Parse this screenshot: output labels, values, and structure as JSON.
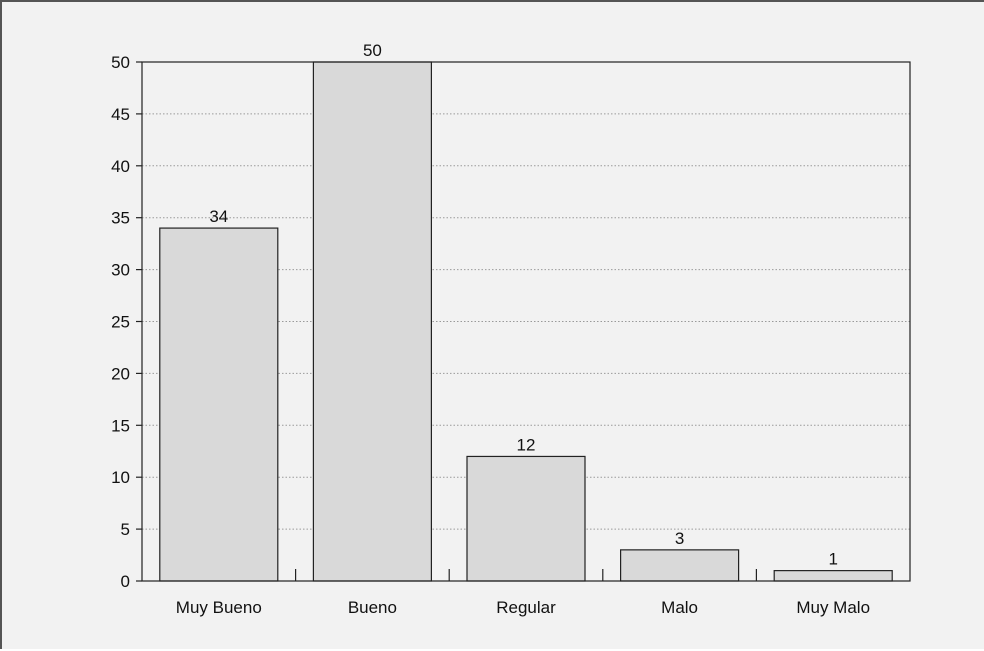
{
  "chart_data": {
    "type": "bar",
    "title": "",
    "xlabel": "",
    "ylabel": "",
    "categories": [
      "Muy Bueno",
      "Bueno",
      "Regular",
      "Malo",
      "Muy Malo"
    ],
    "values": [
      34,
      50,
      12,
      3,
      1
    ],
    "data_labels": [
      "34",
      "50",
      "12",
      "3",
      "1"
    ],
    "ylim": [
      0,
      50
    ],
    "yticks": [
      0,
      5,
      10,
      15,
      20,
      25,
      30,
      35,
      40,
      45,
      50
    ],
    "grid": true,
    "legend": "none",
    "colors": {
      "bar_fill": "#d9d9d9",
      "bar_stroke": "#222222",
      "background": "#f2f2f2",
      "gridline": "#9a9a9a"
    }
  }
}
